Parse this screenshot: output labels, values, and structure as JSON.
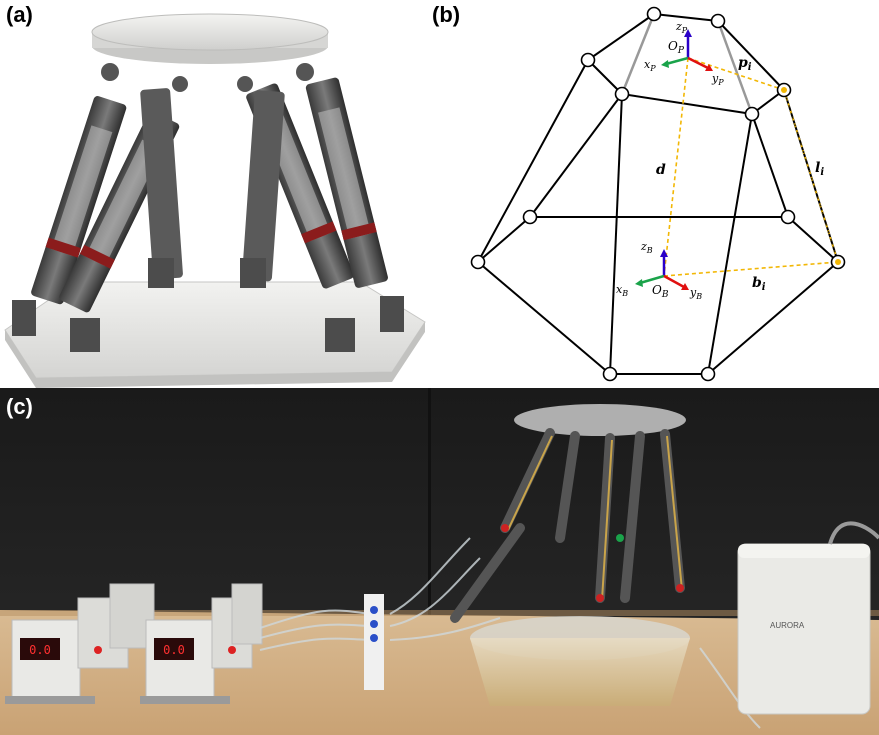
{
  "panels": {
    "a": {
      "label": "(a)"
    },
    "b": {
      "label": "(b)"
    },
    "c": {
      "label": "(c)"
    }
  },
  "diagram": {
    "platform_frame": {
      "z": "z",
      "z_sub": "P",
      "o": "O",
      "o_sub": "P",
      "x": "x",
      "x_sub": "P",
      "y": "y",
      "y_sub": "P"
    },
    "base_frame": {
      "z": "z",
      "z_sub": "B",
      "o": "O",
      "o_sub": "B",
      "x": "x",
      "x_sub": "B",
      "y": "y",
      "y_sub": "B"
    },
    "vectors": {
      "p": "p",
      "p_sub": "i",
      "l": "l",
      "l_sub": "i",
      "b": "b",
      "b_sub": "i",
      "d": "d"
    }
  },
  "photo": {
    "controller_brand": "AURORA",
    "display_value_1": "0.0",
    "display_value_2": "0.0"
  },
  "colors": {
    "z_axis": "#2a00c8",
    "x_axis": "#1aa34a",
    "y_axis": "#e01010",
    "dashed": "#f2b705",
    "background_c": "#1b1b1b",
    "table": "#d8b58a"
  }
}
